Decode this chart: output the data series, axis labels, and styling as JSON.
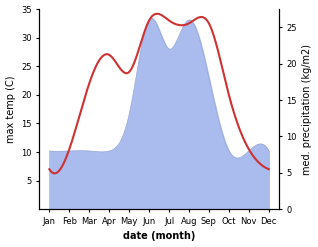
{
  "months": [
    "Jan",
    "Feb",
    "Mar",
    "Apr",
    "May",
    "Jun",
    "Jul",
    "Aug",
    "Sep",
    "Oct",
    "Nov",
    "Dec"
  ],
  "month_positions": [
    0,
    1,
    2,
    3,
    4,
    5,
    6,
    7,
    8,
    9,
    10,
    11
  ],
  "temperature": [
    7,
    10.5,
    22,
    27,
    24,
    33,
    33,
    32.5,
    32.5,
    20,
    10.5,
    7
  ],
  "precipitation": [
    8,
    8,
    8,
    8,
    13,
    26,
    22,
    26,
    18,
    8,
    8,
    8
  ],
  "temp_color": "#cc3333",
  "precip_color": "#aabbee",
  "precip_edge_color": "#9aabd8",
  "temp_ylim": [
    0,
    35
  ],
  "precip_ylim": [
    0,
    27.5
  ],
  "temp_yticks": [
    5,
    10,
    15,
    20,
    25,
    30,
    35
  ],
  "precip_yticks": [
    0,
    5,
    10,
    15,
    20,
    25
  ],
  "xlabel": "date (month)",
  "ylabel_left": "max temp (C)",
  "ylabel_right": "med. precipitation (kg/m2)",
  "axis_fontsize": 7,
  "tick_fontsize": 6,
  "bg_color": "#ffffff",
  "linewidth": 1.5
}
